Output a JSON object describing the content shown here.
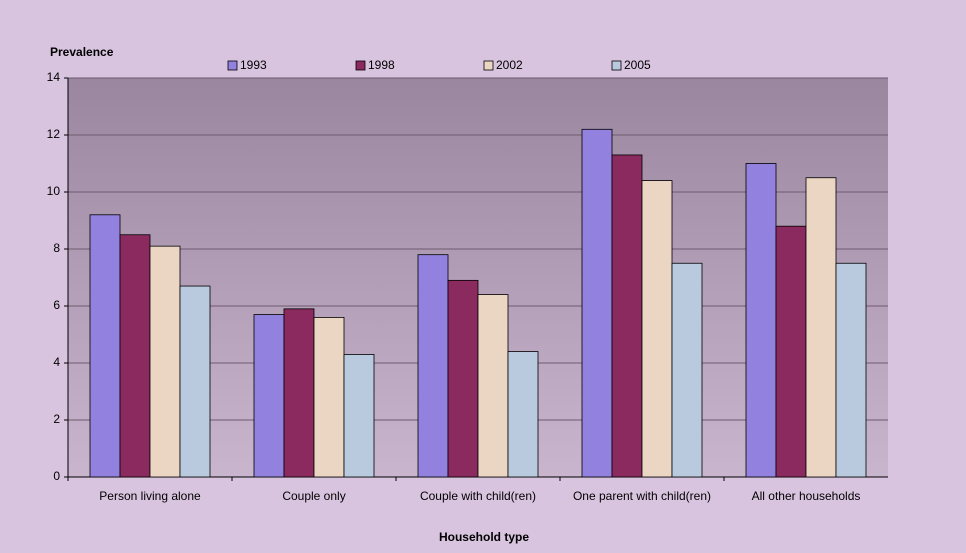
{
  "chart_data": {
    "type": "bar",
    "y_label": "Prevalence",
    "x_label": "Household type",
    "categories": [
      "Person living alone",
      "Couple only",
      "Couple with child(ren)",
      "One parent with child(ren)",
      "All other households"
    ],
    "series": [
      {
        "name": "1993",
        "color": "#9381e0",
        "values": [
          9.2,
          5.7,
          7.8,
          12.2,
          11.0
        ]
      },
      {
        "name": "1998",
        "color": "#8b2a5e",
        "values": [
          8.5,
          5.9,
          6.9,
          11.3,
          8.8
        ]
      },
      {
        "name": "2002",
        "color": "#ead6c2",
        "values": [
          8.1,
          5.6,
          6.4,
          10.4,
          10.5
        ]
      },
      {
        "name": "2005",
        "color": "#b9c9de",
        "values": [
          6.7,
          4.3,
          4.4,
          7.5,
          7.5
        ]
      }
    ],
    "ylim": [
      0,
      14
    ],
    "yticks": [
      0,
      2,
      4,
      6,
      8,
      10,
      12,
      14
    ],
    "grid": true,
    "legend": "top"
  }
}
